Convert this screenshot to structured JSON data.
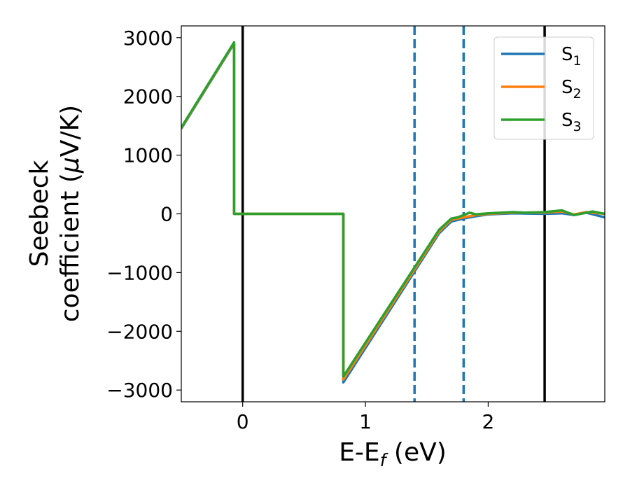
{
  "chart_data": {
    "type": "line",
    "xlabel": {
      "base": "E-E",
      "sub": "f",
      "suffix": " (eV)"
    },
    "ylabel": {
      "line1": "Seebeck",
      "line2": "coefficient  (",
      "mu": "μ",
      "unit": "V/K)"
    },
    "xlim": [
      -0.5,
      2.95
    ],
    "ylim": [
      -3200,
      3200
    ],
    "xticks": [
      {
        "value": 0,
        "label": "0"
      },
      {
        "value": 1,
        "label": "1"
      },
      {
        "value": 2,
        "label": "2"
      }
    ],
    "yticks": [
      {
        "value": 3000,
        "label": "3000"
      },
      {
        "value": 2000,
        "label": "2000"
      },
      {
        "value": 1000,
        "label": "1000"
      },
      {
        "value": 0,
        "label": "0"
      },
      {
        "value": -1000,
        "label": "−1000"
      },
      {
        "value": -2000,
        "label": "−2000"
      },
      {
        "value": -3000,
        "label": "−3000"
      }
    ],
    "vlines": [
      {
        "x": 0,
        "style": "solid",
        "color": "#000000"
      },
      {
        "x": 2.46,
        "style": "solid",
        "color": "#000000"
      },
      {
        "x": 1.4,
        "style": "dashed",
        "color": "#1f77b4"
      },
      {
        "x": 1.8,
        "style": "dashed",
        "color": "#1f77b4"
      }
    ],
    "legend": {
      "placement": "top-right"
    },
    "series": [
      {
        "name": "S",
        "sub": "1",
        "color": "#1f77b4",
        "points": [
          [
            -0.5,
            1450
          ],
          [
            -0.07,
            2900
          ],
          [
            -0.07,
            0
          ],
          [
            0.82,
            0
          ],
          [
            0.82,
            -2870
          ],
          [
            1.6,
            -330
          ],
          [
            1.7,
            -130
          ],
          [
            1.8,
            -80
          ],
          [
            1.9,
            -40
          ],
          [
            2.0,
            -10
          ],
          [
            2.2,
            10
          ],
          [
            2.46,
            0
          ],
          [
            2.6,
            10
          ],
          [
            2.7,
            -20
          ],
          [
            2.8,
            20
          ],
          [
            2.95,
            -60
          ]
        ]
      },
      {
        "name": "S",
        "sub": "2",
        "color": "#ff7f0e",
        "points": [
          [
            -0.5,
            1460
          ],
          [
            -0.07,
            2910
          ],
          [
            -0.07,
            0
          ],
          [
            0.82,
            0
          ],
          [
            0.82,
            -2820
          ],
          [
            1.6,
            -300
          ],
          [
            1.7,
            -100
          ],
          [
            1.8,
            -60
          ],
          [
            1.9,
            -20
          ],
          [
            2.0,
            0
          ],
          [
            2.2,
            20
          ],
          [
            2.46,
            20
          ],
          [
            2.6,
            40
          ],
          [
            2.7,
            -10
          ],
          [
            2.8,
            30
          ],
          [
            2.95,
            0
          ]
        ]
      },
      {
        "name": "S",
        "sub": "3",
        "color": "#2ca02c",
        "points": [
          [
            -0.5,
            1470
          ],
          [
            -0.07,
            2920
          ],
          [
            -0.07,
            0
          ],
          [
            0.82,
            0
          ],
          [
            0.82,
            -2770
          ],
          [
            1.6,
            -270
          ],
          [
            1.7,
            -80
          ],
          [
            1.75,
            -60
          ],
          [
            1.8,
            -20
          ],
          [
            1.85,
            20
          ],
          [
            1.9,
            -10
          ],
          [
            2.0,
            10
          ],
          [
            2.2,
            30
          ],
          [
            2.3,
            20
          ],
          [
            2.46,
            30
          ],
          [
            2.6,
            60
          ],
          [
            2.7,
            -20
          ],
          [
            2.85,
            40
          ],
          [
            2.95,
            0
          ]
        ]
      }
    ]
  }
}
